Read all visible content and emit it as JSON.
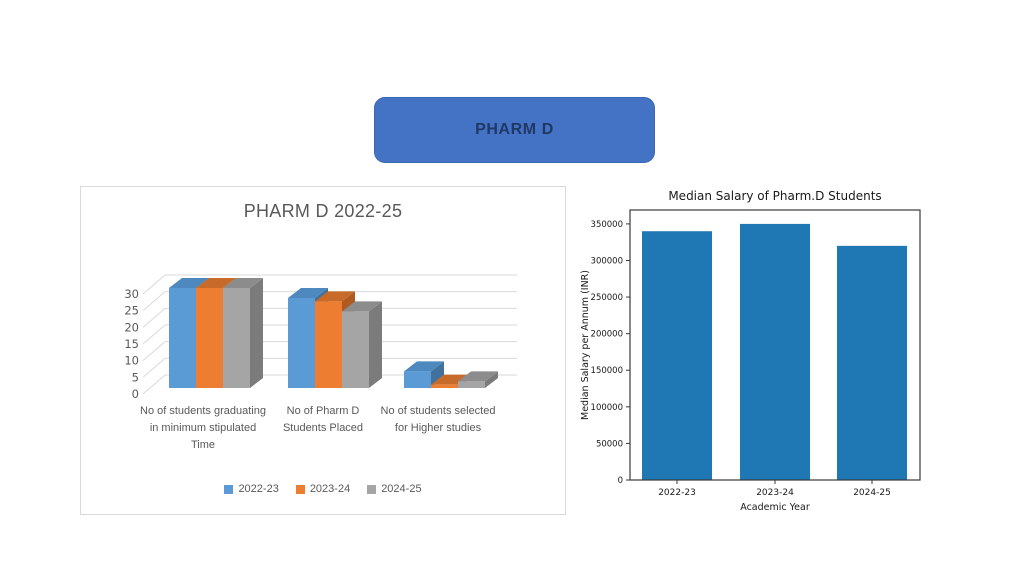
{
  "header_button": {
    "label": "PHARM D",
    "fill": "#4472C4",
    "border_color": "#3B66B0",
    "text_color": "#1F3864"
  },
  "chart_data": [
    {
      "type": "bar",
      "variant": "3d-clustered",
      "title": "PHARM D 2022-25",
      "categories": [
        "No of students graduating in minimum stipulated Time",
        "No of Pharm D Students Placed",
        "No of students selected for Higher studies"
      ],
      "series": [
        {
          "name": "2022-23",
          "color": "#5B9BD5",
          "color_top": "#4D88BE",
          "color_side": "#41719C",
          "values": [
            30,
            27,
            5
          ]
        },
        {
          "name": "2023-24",
          "color": "#ED7D31",
          "color_top": "#C86B2A",
          "color_side": "#AE5A21",
          "values": [
            30,
            26,
            1
          ]
        },
        {
          "name": "2024-25",
          "color": "#A5A5A5",
          "color_top": "#8C8C8C",
          "color_side": "#7B7B7B",
          "values": [
            30,
            23,
            2
          ]
        }
      ],
      "ylim": [
        0,
        30
      ],
      "ytick_step": 5,
      "yticks": [
        0,
        5,
        10,
        15,
        20,
        25,
        30
      ],
      "grid": true,
      "gridline_color": "#D9D9D9",
      "label_color": "#595959",
      "legend_position": "bottom"
    },
    {
      "type": "bar",
      "title": "Median Salary of Pharm.D Students",
      "xlabel": "Academic Year",
      "ylabel": "Median Salary per Annum (INR)",
      "categories": [
        "2022-23",
        "2023-24",
        "2024-25"
      ],
      "values": [
        340000,
        350000,
        320000
      ],
      "yticks": [
        0,
        50000,
        100000,
        150000,
        200000,
        250000,
        300000,
        350000
      ],
      "ylim": [
        0,
        369000
      ],
      "bar_color": "#1F77B4",
      "spine_color": "#3a3a3a",
      "text_color": "#1a1a1a",
      "grid": false,
      "legend_position": "none"
    }
  ]
}
